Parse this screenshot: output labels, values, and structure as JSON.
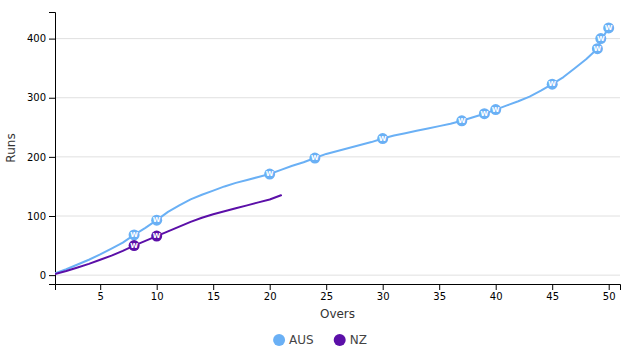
{
  "chart_data": {
    "type": "line",
    "xlabel": "Overs",
    "ylabel": "Runs",
    "xlim": [
      1,
      51
    ],
    "ylim": [
      -15,
      445
    ],
    "xticks": [
      5,
      10,
      15,
      20,
      25,
      30,
      35,
      40,
      45,
      50
    ],
    "yticks": [
      0,
      100,
      200,
      300,
      400
    ],
    "grid": "y",
    "legend": "bottom",
    "series": [
      {
        "name": "AUS",
        "color": "#6ab0f5",
        "x": [
          1,
          2,
          3,
          4,
          5,
          6,
          7,
          8,
          9,
          10,
          11,
          12,
          13,
          14,
          15,
          16,
          17,
          18,
          19,
          20,
          21,
          22,
          23,
          24,
          25,
          26,
          27,
          28,
          29,
          30,
          31,
          32,
          33,
          34,
          35,
          36,
          37,
          38,
          39,
          40,
          41,
          42,
          43,
          44,
          45,
          46,
          47,
          48,
          49,
          49.4,
          50
        ],
        "values": [
          3,
          10,
          18,
          26,
          35,
          45,
          55,
          68,
          80,
          93,
          107,
          118,
          128,
          136,
          143,
          150,
          156,
          161,
          166,
          171,
          178,
          185,
          191,
          198,
          205,
          210,
          215,
          220,
          225,
          231,
          236,
          240,
          244,
          248,
          252,
          256,
          261,
          267,
          273,
          280,
          287,
          294,
          302,
          312,
          323,
          335,
          350,
          365,
          383,
          400,
          418
        ],
        "wickets": {
          "x": [
            8,
            10,
            20,
            24,
            30,
            37,
            39,
            40,
            45,
            49,
            49.3,
            50
          ],
          "values": [
            68,
            93,
            171,
            198,
            231,
            261,
            273,
            280,
            323,
            383,
            400,
            418
          ],
          "labels": [
            "W",
            "W",
            "W",
            "W",
            "W",
            "W",
            "W",
            "W",
            "W",
            "W",
            "W",
            "W"
          ]
        }
      },
      {
        "name": "NZ",
        "color": "#5b0fa8",
        "x": [
          1,
          2,
          3,
          4,
          5,
          6,
          7,
          8,
          9,
          10,
          11,
          12,
          13,
          14,
          15,
          16,
          17,
          18,
          19,
          20,
          21
        ],
        "values": [
          2,
          7,
          13,
          19,
          26,
          33,
          41,
          50,
          58,
          66,
          74,
          82,
          90,
          97,
          103,
          108,
          113,
          118,
          123,
          128,
          135
        ],
        "wickets": {
          "x": [
            8,
            10
          ],
          "values": [
            50,
            66
          ],
          "labels": [
            "W",
            "W"
          ]
        }
      }
    ]
  }
}
